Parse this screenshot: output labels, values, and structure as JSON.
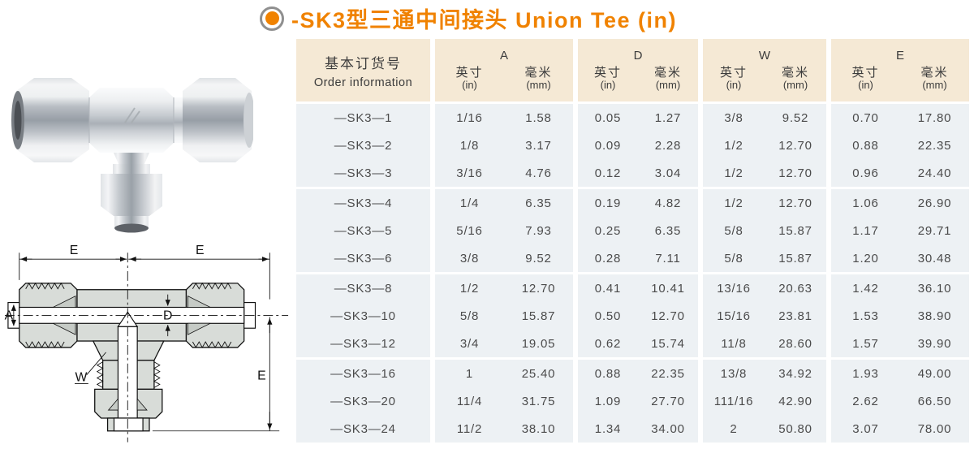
{
  "title": {
    "text": "-SK3型三通中间接头 Union Tee (in)",
    "color": "#f08200",
    "bullet_ring_color": "#8f8f8f"
  },
  "table": {
    "colors": {
      "header_bg": "#f5e9d5",
      "row_bg": "#edf1f4",
      "text": "#4b4b4b"
    },
    "order_header": {
      "cn": "基本订货号",
      "en": "Order information"
    },
    "sub_header": {
      "inch_cn": "英寸",
      "inch_unit": "(in)",
      "mm_cn": "毫米",
      "mm_unit": "(mm)"
    },
    "groups": [
      "A",
      "D",
      "W",
      "E"
    ],
    "group_size": 3,
    "rows": [
      {
        "order": "—SK3—1",
        "values": [
          "1/16",
          "1.58",
          "0.05",
          "1.27",
          "3/8",
          "9.52",
          "0.70",
          "17.80"
        ]
      },
      {
        "order": "—SK3—2",
        "values": [
          "1/8",
          "3.17",
          "0.09",
          "2.28",
          "1/2",
          "12.70",
          "0.88",
          "22.35"
        ]
      },
      {
        "order": "—SK3—3",
        "values": [
          "3/16",
          "4.76",
          "0.12",
          "3.04",
          "1/2",
          "12.70",
          "0.96",
          "24.40"
        ]
      },
      {
        "order": "—SK3—4",
        "values": [
          "1/4",
          "6.35",
          "0.19",
          "4.82",
          "1/2",
          "12.70",
          "1.06",
          "26.90"
        ]
      },
      {
        "order": "—SK3—5",
        "values": [
          "5/16",
          "7.93",
          "0.25",
          "6.35",
          "5/8",
          "15.87",
          "1.17",
          "29.71"
        ]
      },
      {
        "order": "—SK3—6",
        "values": [
          "3/8",
          "9.52",
          "0.28",
          "7.11",
          "5/8",
          "15.87",
          "1.20",
          "30.48"
        ]
      },
      {
        "order": "—SK3—8",
        "values": [
          "1/2",
          "12.70",
          "0.41",
          "10.41",
          "13/16",
          "20.63",
          "1.42",
          "36.10"
        ]
      },
      {
        "order": "—SK3—10",
        "values": [
          "5/8",
          "15.87",
          "0.50",
          "12.70",
          "15/16",
          "23.81",
          "1.53",
          "38.90"
        ]
      },
      {
        "order": "—SK3—12",
        "values": [
          "3/4",
          "19.05",
          "0.62",
          "15.74",
          "11/8",
          "28.60",
          "1.57",
          "39.90"
        ]
      },
      {
        "order": "—SK3—16",
        "values": [
          "1",
          "25.40",
          "0.88",
          "22.35",
          "13/8",
          "34.92",
          "1.93",
          "49.00"
        ]
      },
      {
        "order": "—SK3—20",
        "values": [
          "11/4",
          "31.75",
          "1.09",
          "27.70",
          "111/16",
          "42.90",
          "2.62",
          "66.50"
        ]
      },
      {
        "order": "—SK3—24",
        "values": [
          "11/2",
          "38.10",
          "1.34",
          "34.00",
          "2",
          "50.80",
          "3.07",
          "78.00"
        ]
      }
    ]
  },
  "diagram": {
    "labels": {
      "top_left": "E",
      "top_right": "E",
      "bore": "A",
      "center": "D",
      "body": "W",
      "right": "E"
    }
  }
}
